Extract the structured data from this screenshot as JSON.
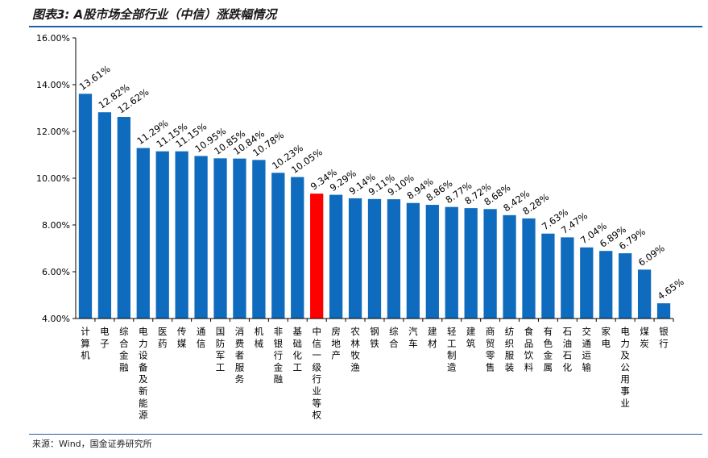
{
  "header": {
    "title": "图表3: A股市场全部行业（中信）涨跌幅情况"
  },
  "footer": {
    "source": "来源：Wind，国金证券研究所"
  },
  "colors": {
    "bar": "#0f6bbd",
    "highlight": "#ff0000",
    "rule": "#1f5fa8",
    "axis": "#000000"
  },
  "chart_data": {
    "type": "bar",
    "categories": [
      "计算机",
      "电子",
      "综合金融",
      "电力设备及新能源",
      "医药",
      "传媒",
      "通信",
      "国防军工",
      "消费者服务",
      "机械",
      "非银行金融",
      "基础化工",
      "中信一级行业等权",
      "房地产",
      "农林牧渔",
      "钢铁",
      "综合",
      "汽车",
      "建材",
      "轻工制造",
      "建筑",
      "商贸零售",
      "纺织服装",
      "食品饮料",
      "有色金属",
      "石油石化",
      "交通运输",
      "家电",
      "电力及公用事业",
      "煤炭",
      "银行"
    ],
    "values": [
      13.61,
      12.82,
      12.62,
      11.29,
      11.15,
      11.15,
      10.95,
      10.85,
      10.84,
      10.78,
      10.23,
      10.05,
      9.34,
      9.29,
      9.14,
      9.11,
      9.1,
      8.94,
      8.86,
      8.77,
      8.72,
      8.68,
      8.42,
      8.28,
      7.63,
      7.47,
      7.04,
      6.89,
      6.79,
      6.09,
      4.65
    ],
    "labels": [
      "13.61%",
      "12.82%",
      "12.62%",
      "11.29%",
      "11.15%",
      "11.15%",
      "10.95%",
      "10.85%",
      "10.84%",
      "10.78%",
      "10.23%",
      "10.05%",
      "9.34%",
      "9.29%",
      "9.14%",
      "9.11%",
      "9.10%",
      "8.94%",
      "8.86%",
      "8.77%",
      "8.72%",
      "8.68%",
      "8.42%",
      "8.28%",
      "7.63%",
      "7.47%",
      "7.04%",
      "6.89%",
      "6.79%",
      "6.09%",
      "4.65%"
    ],
    "highlight_index": 12,
    "ylim": [
      4,
      16
    ],
    "yticks": [
      4,
      6,
      8,
      10,
      12,
      14,
      16
    ],
    "ytick_labels": [
      "4.00%",
      "6.00%",
      "8.00%",
      "10.00%",
      "12.00%",
      "14.00%",
      "16.00%"
    ],
    "grid": false,
    "legend": "none"
  }
}
